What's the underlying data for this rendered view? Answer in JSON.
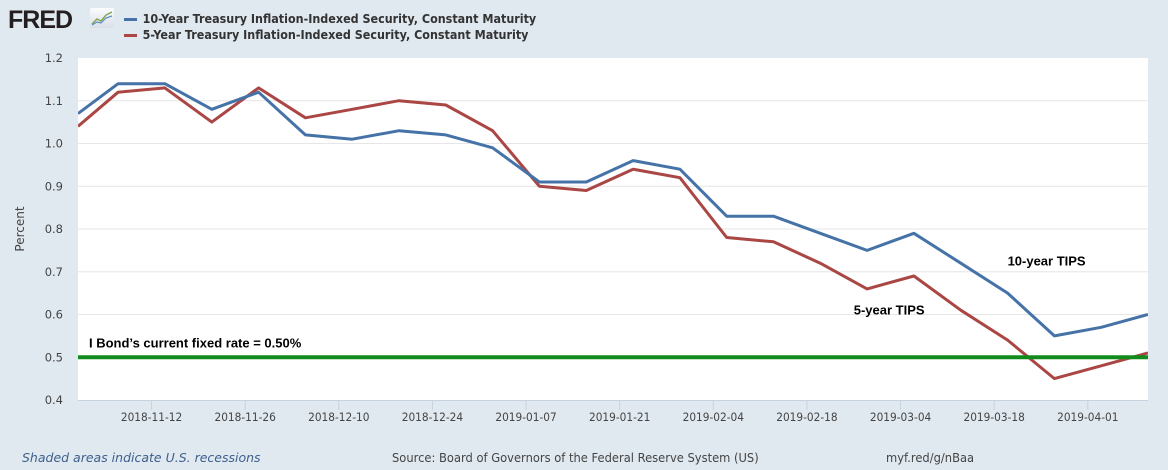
{
  "header": {
    "logo_text": "FRED",
    "logo_icon": "chart-line-icon"
  },
  "footer": {
    "recession_note": "Shaded areas indicate U.S. recessions",
    "source": "Source: Board of Governors of the Federal Reserve System (US)",
    "short_link": "myf.red/g/nBaa"
  },
  "chart_data": {
    "type": "line",
    "title": "",
    "xlabel": "",
    "ylabel": "Percent",
    "xlim": [
      "2018-11-01",
      "2019-04-10"
    ],
    "ylim": [
      0.4,
      1.2
    ],
    "yticks": [
      0.4,
      0.5,
      0.6,
      0.7,
      0.8,
      0.9,
      1.0,
      1.1,
      1.2
    ],
    "ytick_labels": [
      "0.4",
      "0.5",
      "0.6",
      "0.7",
      "0.8",
      "0.9",
      "1.0",
      "1.1",
      "1.2"
    ],
    "xticks": [
      "2018-11-12",
      "2018-11-26",
      "2018-12-10",
      "2018-12-24",
      "2019-01-07",
      "2019-01-21",
      "2019-02-04",
      "2019-02-18",
      "2019-03-04",
      "2019-03-18",
      "2019-04-01"
    ],
    "grid": true,
    "legend_position": "top-left",
    "x": [
      "2018-11-01",
      "2018-11-07",
      "2018-11-14",
      "2018-11-21",
      "2018-11-28",
      "2018-12-05",
      "2018-12-12",
      "2018-12-19",
      "2018-12-26",
      "2019-01-02",
      "2019-01-09",
      "2019-01-16",
      "2019-01-23",
      "2019-01-30",
      "2019-02-06",
      "2019-02-13",
      "2019-02-20",
      "2019-02-27",
      "2019-03-06",
      "2019-03-13",
      "2019-03-20",
      "2019-03-27",
      "2019-04-03",
      "2019-04-10"
    ],
    "series": [
      {
        "name": "10-Year Treasury Inflation-Indexed Security, Constant Maturity",
        "color": "#4572a7",
        "values": [
          1.07,
          1.14,
          1.14,
          1.08,
          1.12,
          1.02,
          1.01,
          1.03,
          1.02,
          0.99,
          0.91,
          0.91,
          0.96,
          0.94,
          0.83,
          0.83,
          0.79,
          0.75,
          0.79,
          0.72,
          0.65,
          0.55,
          0.57,
          0.6
        ]
      },
      {
        "name": "5-Year Treasury Inflation-Indexed Security, Constant Maturity",
        "color": "#aa4643",
        "values": [
          1.04,
          1.12,
          1.13,
          1.05,
          1.13,
          1.06,
          1.08,
          1.1,
          1.09,
          1.03,
          0.9,
          0.89,
          0.94,
          0.92,
          0.78,
          0.77,
          0.72,
          0.66,
          0.69,
          0.61,
          0.54,
          0.45,
          0.48,
          0.51
        ]
      }
    ],
    "reference_line": {
      "label": "I Bond’s current fixed rate = 0.50%",
      "value": 0.5,
      "color": "#118c1c"
    },
    "annotations": [
      {
        "text": "10-year TIPS",
        "x": "2019-03-20",
        "y": 0.715
      },
      {
        "text": "5-year TIPS",
        "x": "2019-02-25",
        "y": 0.6
      }
    ]
  }
}
